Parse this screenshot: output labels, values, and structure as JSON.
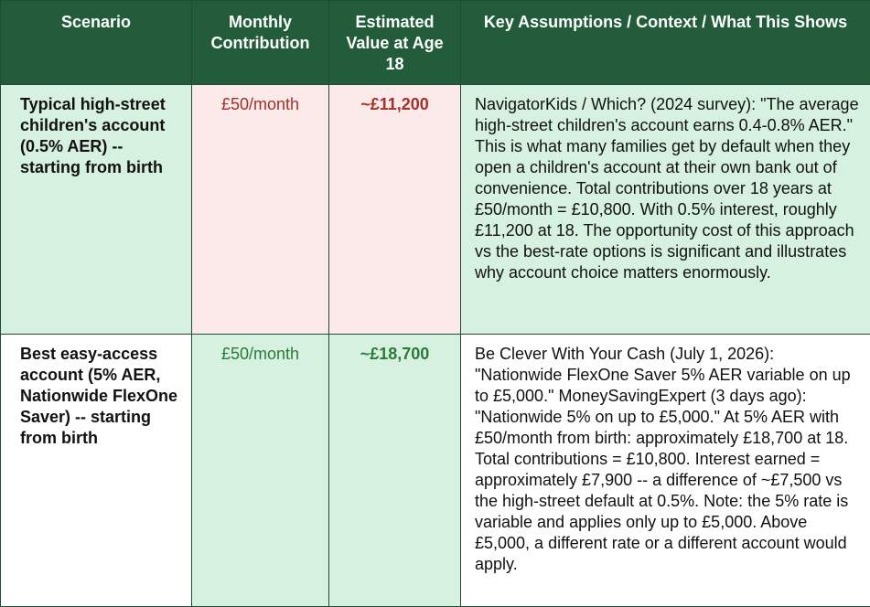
{
  "table": {
    "header": [
      "Scenario",
      "Monthly Contribution",
      "Estimated Value at Age 18",
      "Key Assumptions / Context / What This Shows"
    ],
    "rows": [
      [
        "Typical high-street children's account (0.5% AER) -- starting from birth",
        "£50/month",
        "~£11,200",
        "NavigatorKids / Which? (2024 survey): \"The average high-street children's account earns 0.4-0.8% AER.\" This is what many families get by default when they open a children's account at their own bank out of convenience. Total contributions over 18 years at £50/month = £10,800. With 0.5% interest, roughly £11,200 at 18. The opportunity cost of this approach vs the best-rate options is significant and illustrates why account choice matters enormously."
      ],
      [
        "Best easy-access account (5% AER, Nationwide FlexOne Saver) -- starting from birth",
        "£50/month",
        "~£18,700",
        "Be Clever With Your Cash (July 1, 2026): \"Nationwide FlexOne Saver 5% AER variable on up to £5,000.\" MoneySavingExpert (3 days ago): \"Nationwide 5% on up to £5,000.\" At 5% AER with £50/month from birth: approximately £18,700 at 18. Total contributions = £10,800. Interest earned = approximately £7,900 -- a difference of ~£7,500 vs the high-street default at 0.5%. Note: the 5% rate is variable and applies only up to £5,000. Above £5,000, a different rate or a different account would apply."
      ]
    ]
  }
}
